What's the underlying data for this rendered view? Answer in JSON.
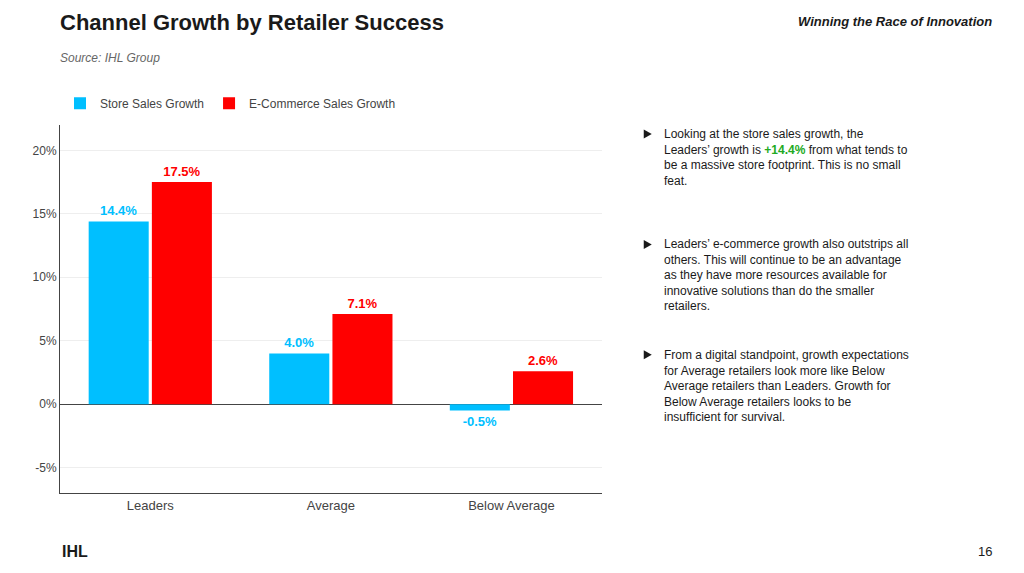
{
  "chart_data": {
    "type": "bar",
    "title": "Channel Growth by Retailer Success",
    "subtitle": "Source: IHL Group",
    "categories": [
      "Leaders",
      "Average",
      "Below Average"
    ],
    "series": [
      {
        "name": "Store Sales Growth",
        "color": "#00BFFF",
        "values": [
          14.4,
          4.0,
          -0.5
        ],
        "value_labels": [
          "14.4%",
          "4.0%",
          "-0.5%"
        ]
      },
      {
        "name": "E-Commerce Sales Growth",
        "color": "#FF0000",
        "values": [
          17.5,
          7.1,
          2.6
        ],
        "value_labels": [
          "17.5%",
          "7.1%",
          "2.6%"
        ]
      }
    ],
    "ylim": [
      -7,
      22
    ],
    "yticks": [
      {
        "value": -5,
        "label": "-5%"
      },
      {
        "value": 0,
        "label": "0%"
      },
      {
        "value": 5,
        "label": "5%"
      },
      {
        "value": 10,
        "label": "10%"
      },
      {
        "value": 15,
        "label": "15%"
      },
      {
        "value": 20,
        "label": "20%"
      }
    ],
    "grid": true,
    "legend": "upper left",
    "data_labels": true,
    "annotations": [
      "Winning the Race of Innovation",
      "IHL",
      "16",
      "Looking at the store sales growth, the Leaders’ growth is +14.4% from what tends to be a massive store footprint. This is no small feat.",
      "Leaders’ e-commerce growth also outstrips all others. This will continue to be an advantage as they have more resources available for innovative solutions than do the smaller retailers.",
      "From a digital standpoint, growth expectations for Average retailers look more like Below Average retailers than Leaders. Growth for Below Average retailers looks to be insufficient for survival."
    ]
  }
}
